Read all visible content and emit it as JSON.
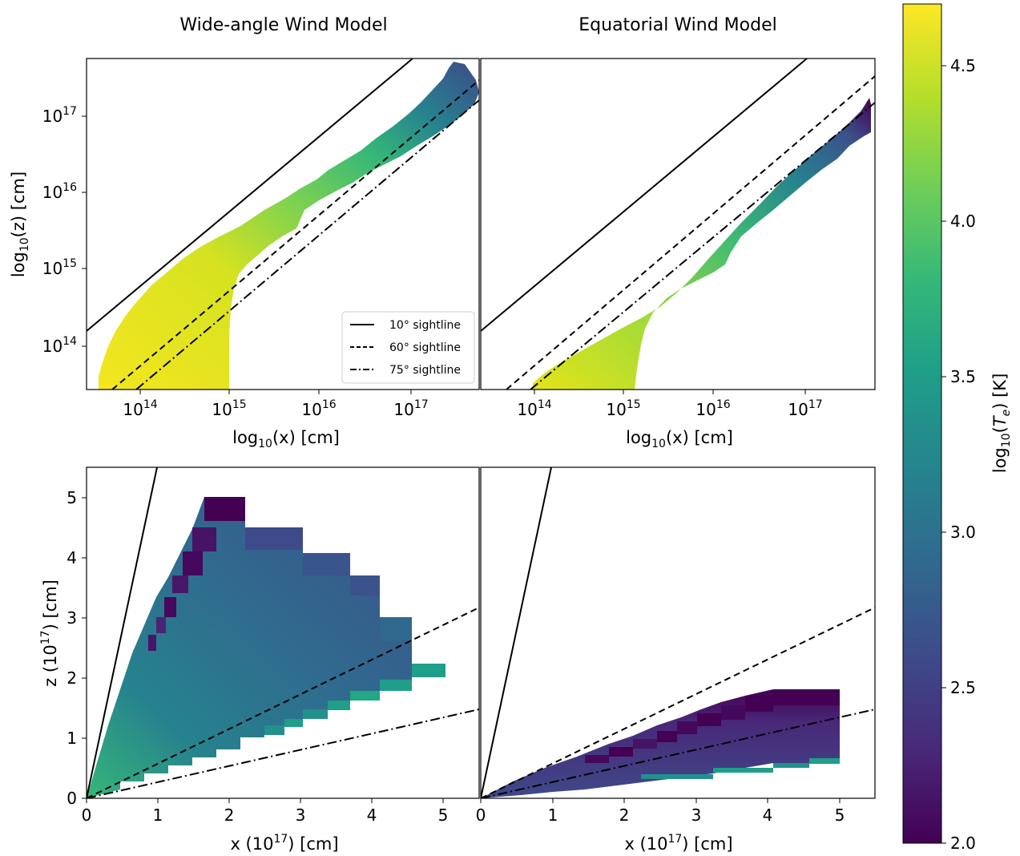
{
  "panel_titles": [
    "Wide-angle Wind Model",
    "Equatorial Wind Model"
  ],
  "colorbar": {
    "label": "log10(Te) [K]",
    "min": 2.0,
    "max": 4.7,
    "colormap": "viridis",
    "ticks": [
      "2.0",
      "2.5",
      "3.0",
      "3.5",
      "4.0",
      "4.5"
    ]
  },
  "legend": {
    "placement": "lower-right",
    "entries": [
      {
        "label": "10° sightline",
        "style": "solid"
      },
      {
        "label": "60° sightline",
        "style": "dashed"
      },
      {
        "label": "75° sightline",
        "style": "dashdot"
      }
    ]
  },
  "chart_data": [
    {
      "panel": "top-left",
      "type": "heatmap",
      "title": "Wide-angle Wind Model",
      "xlabel": "log10(x) [cm]",
      "ylabel": "log10(z) [cm]",
      "xscale": "log",
      "yscale": "log",
      "xlim": [
        25000000000000.0,
        5e+17
      ],
      "ylim": [
        27000000000000.0,
        5e+17
      ],
      "x_ticks": [
        "10^14",
        "10^15",
        "10^16",
        "10^17"
      ],
      "y_ticks": [
        "10^14",
        "10^15",
        "10^16",
        "10^17"
      ],
      "sightlines": [
        {
          "angle_deg": 10,
          "style": "solid"
        },
        {
          "angle_deg": 60,
          "style": "dashed"
        },
        {
          "angle_deg": 75,
          "style": "dashdot"
        }
      ],
      "description": "Te map of wind region; hot (log Te ~4.6) near base, cooling to ~3.5 along the outer cone; edge ~2.0 at largest radii"
    },
    {
      "panel": "top-right",
      "type": "heatmap",
      "title": "Equatorial Wind Model",
      "xlabel": "log10(x) [cm]",
      "xscale": "log",
      "yscale": "log",
      "xlim": [
        25000000000000.0,
        5e+17
      ],
      "ylim": [
        27000000000000.0,
        5e+17
      ],
      "x_ticks": [
        "10^14",
        "10^15",
        "10^16",
        "10^17"
      ],
      "sightlines": [
        {
          "angle_deg": 10,
          "style": "solid"
        },
        {
          "angle_deg": 60,
          "style": "dashed"
        },
        {
          "angle_deg": 75,
          "style": "dashdot"
        }
      ],
      "description": "Narrow equatorial wind between the 60 and 75 degree sightlines; warm near base, cool (~2.0) at outer edge"
    },
    {
      "panel": "bottom-left",
      "type": "heatmap",
      "xlabel": "x (10^17) [cm]",
      "ylabel": "z (10^17) [cm]",
      "xlim": [
        0,
        5.5
      ],
      "ylim": [
        0,
        5.5
      ],
      "x_ticks": [
        0,
        1,
        2,
        3,
        4,
        5
      ],
      "y_ticks": [
        0,
        1,
        2,
        3,
        4,
        5
      ],
      "wind_cells": [
        {
          "x": [
            1.35,
            1.65
          ],
          "z_min": 2.55,
          "z_max": 4.5
        },
        {
          "x": [
            1.65,
            2.25
          ],
          "z_min": 2.55,
          "z_max": 5.0
        },
        {
          "x": [
            2.25,
            3.0
          ],
          "z_min": 2.75,
          "z_max": 4.5
        },
        {
          "x": [
            3.0,
            3.7
          ],
          "z_min": 2.75,
          "z_max": 4.1
        },
        {
          "x": [
            3.7,
            4.5
          ],
          "z_min": 2.75,
          "z_max": 3.0
        },
        {
          "x": [
            4.5,
            5.0
          ],
          "z_min": 2.05,
          "z_max": 2.2,
          "log_te": 3.45
        }
      ],
      "sightlines": [
        {
          "angle_deg": 10,
          "style": "solid"
        },
        {
          "angle_deg": 60,
          "style": "dashed"
        },
        {
          "angle_deg": 75,
          "style": "dashdot"
        }
      ]
    },
    {
      "panel": "bottom-right",
      "type": "heatmap",
      "xlabel": "x (10^17) [cm]",
      "xlim": [
        0,
        5.5
      ],
      "ylim": [
        0,
        5.5
      ],
      "x_ticks": [
        0,
        1,
        2,
        3,
        4,
        5
      ],
      "wedge": {
        "x_max": 5.0,
        "z_top": 1.8,
        "z_bottom": 0.6
      },
      "sightlines": [
        {
          "angle_deg": 10,
          "style": "solid"
        },
        {
          "angle_deg": 60,
          "style": "dashed"
        },
        {
          "angle_deg": 75,
          "style": "dashdot"
        }
      ]
    }
  ]
}
